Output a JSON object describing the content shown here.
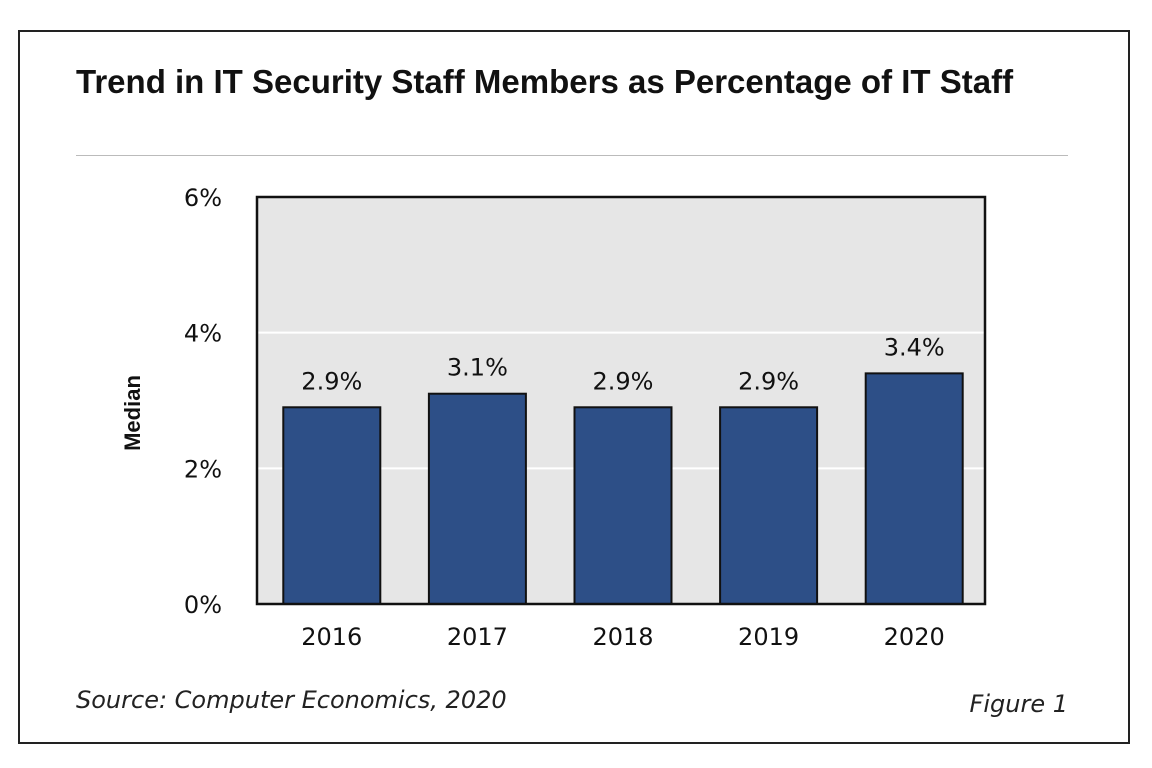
{
  "chart_data": {
    "type": "bar",
    "title": "Trend in IT Security Staff Members as Percentage of IT Staff",
    "xlabel": "",
    "ylabel": "Median",
    "categories": [
      "2016",
      "2017",
      "2018",
      "2019",
      "2020"
    ],
    "values": [
      2.9,
      3.1,
      2.9,
      2.9,
      3.4
    ],
    "data_labels": [
      "2.9%",
      "3.1%",
      "2.9%",
      "2.9%",
      "3.4%"
    ],
    "ylim": [
      0,
      6
    ],
    "yticks": [
      0,
      2,
      4,
      6
    ],
    "ytick_labels": [
      "0%",
      "2%",
      "4%",
      "6%"
    ],
    "grid": true,
    "legend": "none",
    "colors": {
      "bar": "#2d4f87",
      "bar_outline": "#111111",
      "plot_bg": "#e6e6e6",
      "grid": "#ffffff"
    }
  },
  "footer": {
    "source": "Source: Computer Economics, 2020",
    "figure": "Figure 1"
  }
}
